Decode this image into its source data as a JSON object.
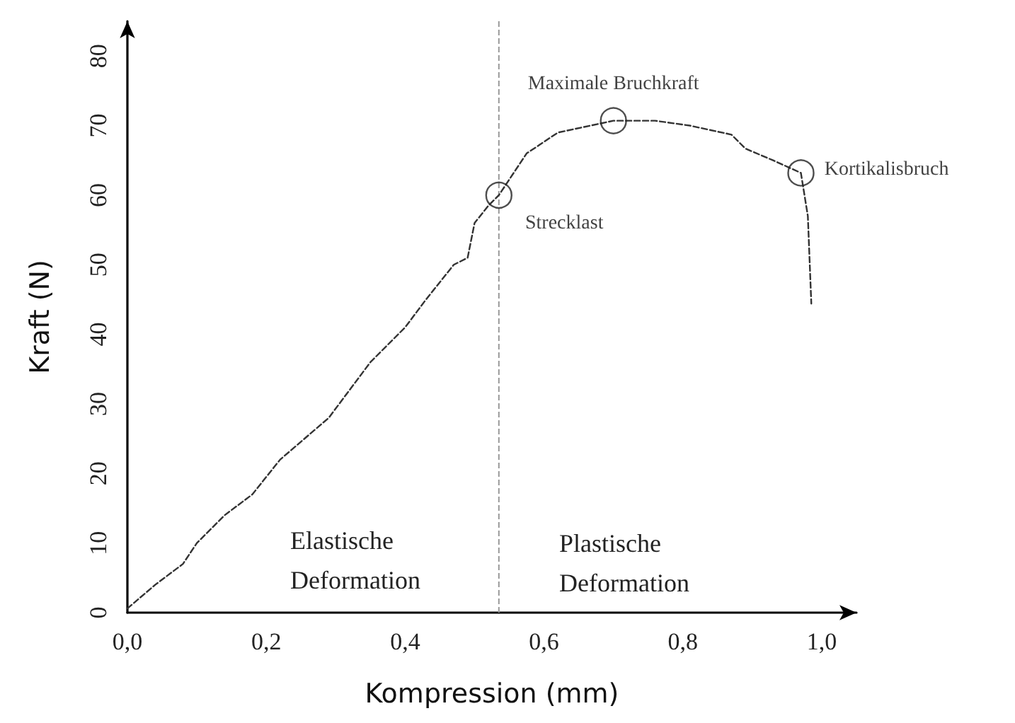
{
  "chart_data": {
    "type": "line",
    "xlabel": "Kompression (mm)",
    "ylabel": "Kraft (N)",
    "xlim": [
      0,
      1.05
    ],
    "ylim": [
      0,
      85
    ],
    "xticks": [
      {
        "value": 0,
        "label": "0,0"
      },
      {
        "value": 0.2,
        "label": "0,2"
      },
      {
        "value": 0.4,
        "label": "0,4"
      },
      {
        "value": 0.6,
        "label": "0,6"
      },
      {
        "value": 0.8,
        "label": "0,8"
      },
      {
        "value": 1,
        "label": "1,0"
      }
    ],
    "yticks": [
      0,
      10,
      20,
      30,
      40,
      50,
      60,
      70,
      80
    ],
    "grid": false,
    "marker": "none",
    "line_style": "dashed",
    "series": [
      {
        "color": "#333333",
        "x": [
          0,
          0.04,
          0.08,
          0.1,
          0.14,
          0.18,
          0.22,
          0.29,
          0.35,
          0.4,
          0.43,
          0.47,
          0.49,
          0.5,
          0.52,
          0.535,
          0.575,
          0.62,
          0.7,
          0.76,
          0.81,
          0.87,
          0.89,
          0.93,
          0.97,
          0.98,
          0.985
        ],
        "values": [
          0.6,
          4,
          7,
          10,
          14,
          17,
          22,
          28,
          36,
          41,
          45,
          50,
          51,
          56,
          58.5,
          60,
          66,
          69,
          70.7,
          70.7,
          70,
          68.7,
          66.7,
          65,
          63.2,
          57,
          44.4
        ]
      }
    ],
    "ref_lines": [
      {
        "axis": "x",
        "value": 0.535,
        "color": "#999999",
        "line_style": "dashed"
      }
    ],
    "annotations": [
      {
        "text": "Strecklast",
        "x": 0.535,
        "y": 60
      },
      {
        "text": "Maximale Bruchkraft",
        "x": 0.7,
        "y": 70.7
      },
      {
        "text": "Kortikalisbruch",
        "x": 0.97,
        "y": 63.2
      },
      "Elastische Deformation",
      "Plastische Deformation"
    ]
  }
}
